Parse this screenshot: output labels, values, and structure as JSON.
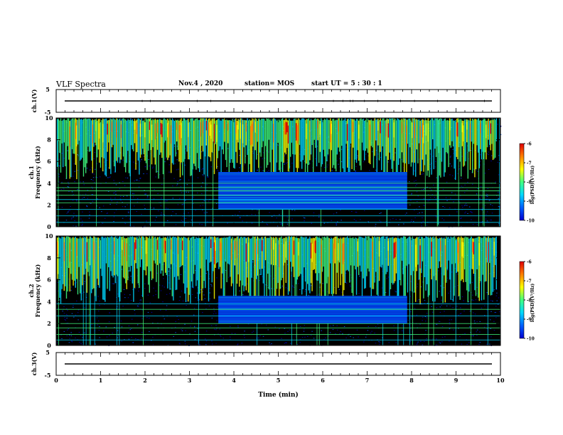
{
  "header": {
    "title": "VLF Spectra",
    "date": "Nov.4  , 2020",
    "station": "station= MOS",
    "start_ut": "start  UT =  5 : 30 : 1"
  },
  "colors": {
    "background": "#000000",
    "axis": "#000000",
    "colormap": [
      "#0000d0",
      "#0060ff",
      "#00d8ff",
      "#40ff80",
      "#ffff00",
      "#ff8000",
      "#e00000"
    ]
  },
  "chart_data": [
    {
      "type": "line",
      "name": "ch1-voltage",
      "ylabel": "ch.1(V)",
      "ylim": [
        -5,
        5
      ],
      "yticks": [
        "5",
        "-5"
      ],
      "xlim": [
        0,
        10
      ],
      "values_constant": 0
    },
    {
      "type": "heatmap",
      "name": "ch1-spectrogram",
      "ylabel": "ch.1\nFrequency (kHz)",
      "ylim": [
        0,
        10
      ],
      "yticks": [
        "0",
        "2",
        "4",
        "6",
        "8",
        "10"
      ],
      "xlim": [
        0,
        10
      ],
      "colorbar": {
        "label": "log(PSD)(V²/Hz)",
        "range": [
          -10,
          -6
        ],
        "ticks": [
          "-6",
          "-7",
          "-8",
          "-9",
          "-10"
        ]
      },
      "sferic_band_khz": [
        4.5,
        10
      ],
      "noise_block": {
        "t_start_min": 3.65,
        "t_end_min": 7.9,
        "f_low_khz": 1.6,
        "f_high_khz": 5.0
      },
      "steady_lines_khz": [
        0.4,
        1.0,
        1.6,
        2.2,
        2.5,
        2.9,
        3.3,
        3.6,
        4.0
      ]
    },
    {
      "type": "heatmap",
      "name": "ch2-spectrogram",
      "ylabel": "ch.2\nFrequency (kHz)",
      "ylim": [
        0,
        10
      ],
      "yticks": [
        "0",
        "2",
        "4",
        "6",
        "8",
        "10"
      ],
      "xlim": [
        0,
        10
      ],
      "colorbar": {
        "label": "log(PSD)(V²/Hz)",
        "range": [
          -10,
          -6
        ],
        "ticks": [
          "-6",
          "-7",
          "-8",
          "-9",
          "-10"
        ]
      },
      "sferic_band_khz": [
        4.0,
        10
      ],
      "noise_block": {
        "t_start_min": 3.65,
        "t_end_min": 7.9,
        "f_low_khz": 2.0,
        "f_high_khz": 4.5
      },
      "steady_lines_khz": [
        0.5,
        1.0,
        1.6,
        2.0,
        2.7,
        3.3,
        3.8
      ]
    },
    {
      "type": "line",
      "name": "ch3-voltage",
      "ylabel": "ch.3(V)",
      "ylim": [
        -5,
        5
      ],
      "yticks": [
        "5",
        "-5"
      ],
      "xlim": [
        0,
        10
      ],
      "values_constant": 0
    }
  ],
  "time_axis": {
    "xlabel": "Time  (min)",
    "xticks": [
      "0",
      "1",
      "2",
      "3",
      "4",
      "5",
      "6",
      "7",
      "8",
      "9",
      "10"
    ]
  }
}
